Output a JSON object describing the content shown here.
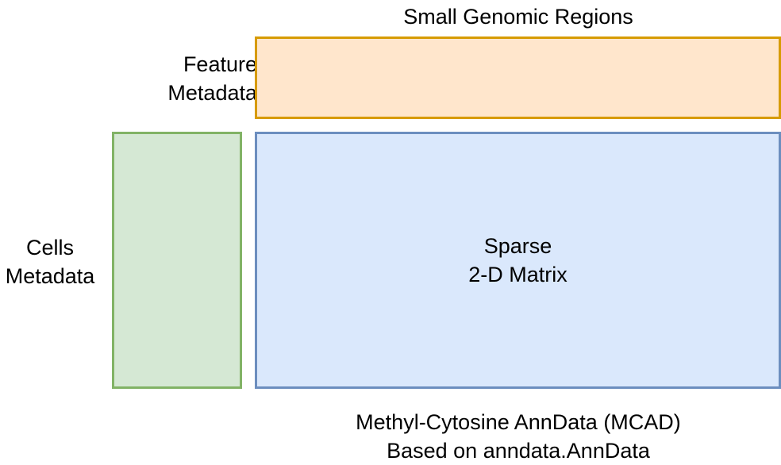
{
  "diagram": {
    "top_title": "Small Genomic Regions",
    "feature_metadata": {
      "line1": "Feature",
      "line2": "Metadata",
      "fill": "#ffe6cc",
      "stroke": "#d79b00"
    },
    "cells_metadata": {
      "line1": "Cells",
      "line2": "Metadata",
      "fill": "#d5e8d4",
      "stroke": "#82b366"
    },
    "matrix": {
      "line1": "Sparse",
      "line2": "2-D Matrix",
      "fill": "#dae8fc",
      "stroke": "#6c8ebf"
    },
    "caption": {
      "line1": "Methyl-Cytosine AnnData (MCAD)",
      "line2": "Based on anndata.AnnData"
    }
  }
}
